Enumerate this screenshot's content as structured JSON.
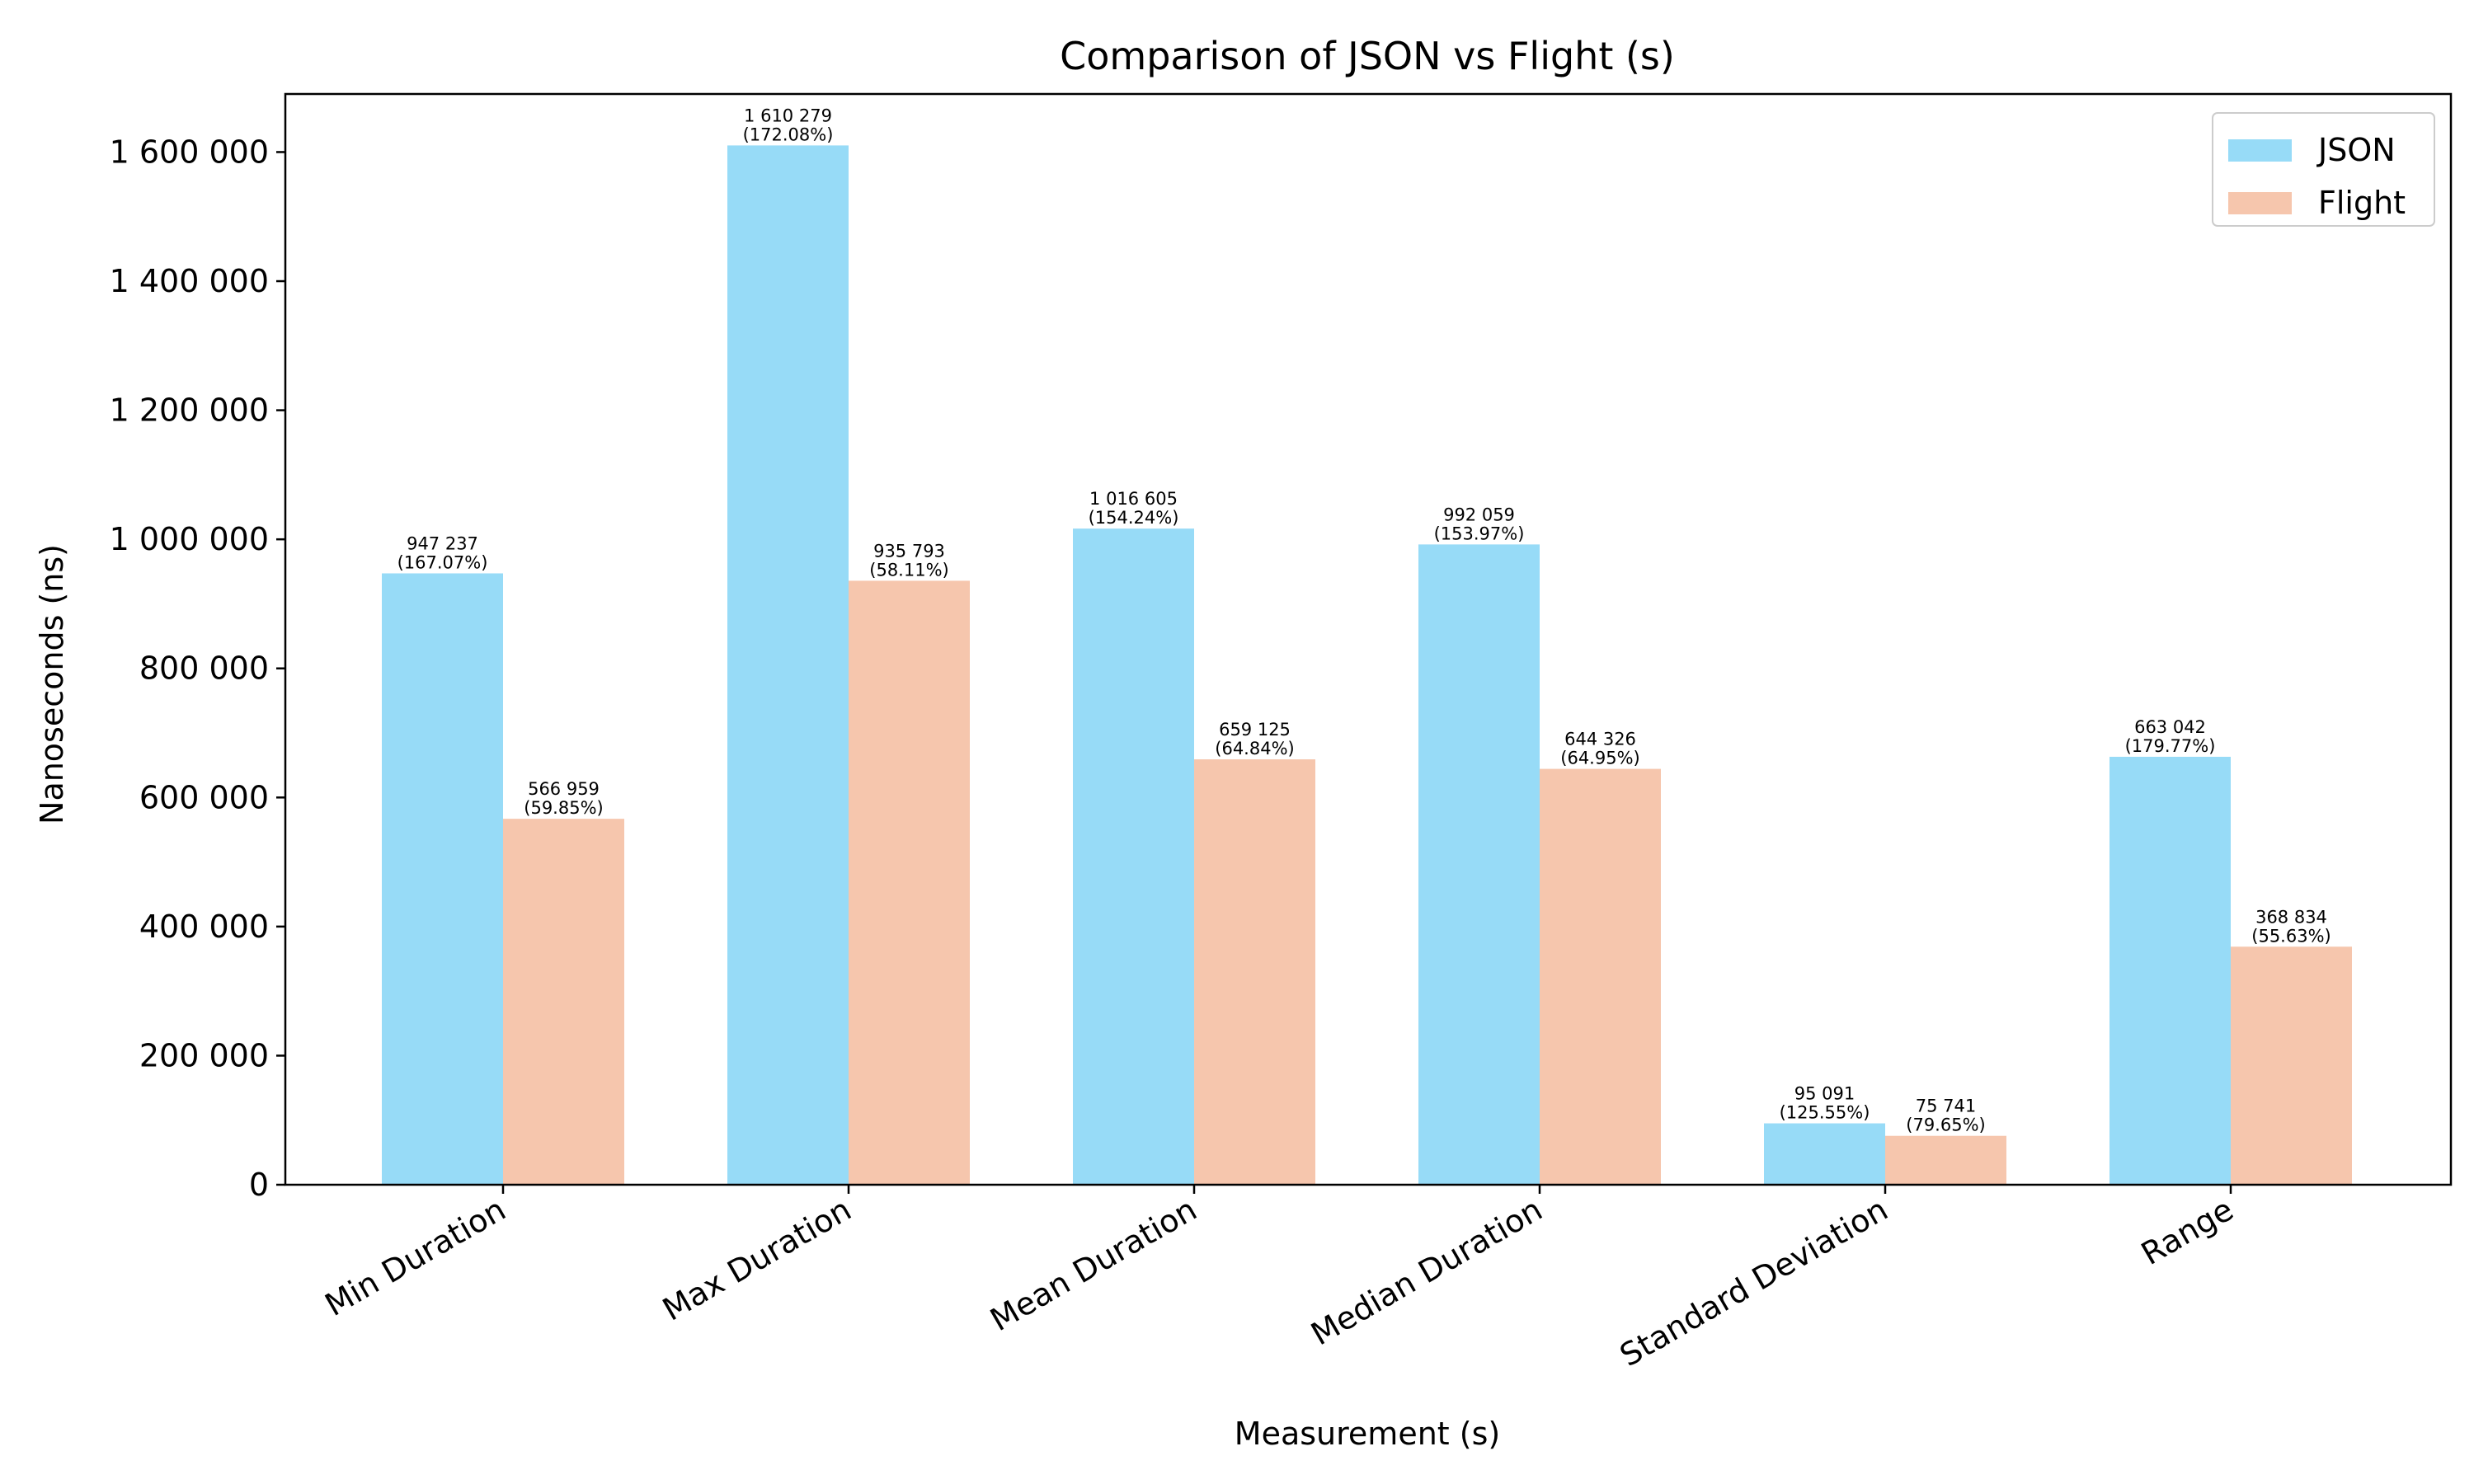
{
  "chart_data": {
    "type": "bar",
    "title": "Comparison of JSON vs Flight (s)",
    "xlabel": "Measurement (s)",
    "ylabel": "Nanoseconds (ns)",
    "categories": [
      "Min Duration",
      "Max Duration",
      "Mean Duration",
      "Median Duration",
      "Standard Deviation",
      "Range"
    ],
    "series": [
      {
        "name": "JSON",
        "color": "#97dbf7",
        "values": [
          947237,
          1610279,
          1016605,
          992059,
          95091,
          663042
        ],
        "value_labels": [
          "947 237",
          "1 610 279",
          "1 016 605",
          "992 059",
          "95 091",
          "663 042"
        ],
        "pct_labels": [
          "(167.07%)",
          "(172.08%)",
          "(154.24%)",
          "(153.97%)",
          "(125.55%)",
          "(179.77%)"
        ]
      },
      {
        "name": "Flight",
        "color": "#f6c6ad",
        "values": [
          566959,
          935793,
          659125,
          644326,
          75741,
          368834
        ],
        "value_labels": [
          "566 959",
          "935 793",
          "659 125",
          "644 326",
          "75 741",
          "368 834"
        ],
        "pct_labels": [
          "(59.85%)",
          "(58.11%)",
          "(64.84%)",
          "(64.95%)",
          "(79.65%)",
          "(55.63%)"
        ]
      }
    ],
    "ylim": [
      0,
      1690000
    ],
    "yticks": [
      0,
      200000,
      400000,
      600000,
      800000,
      1000000,
      1200000,
      1400000,
      1600000
    ],
    "ytick_labels": [
      "0",
      "200 000",
      "400 000",
      "600 000",
      "800 000",
      "1 000 000",
      "1 200 000",
      "1 400 000",
      "1 600 000"
    ],
    "grid": false,
    "legend_position": "top-right"
  }
}
